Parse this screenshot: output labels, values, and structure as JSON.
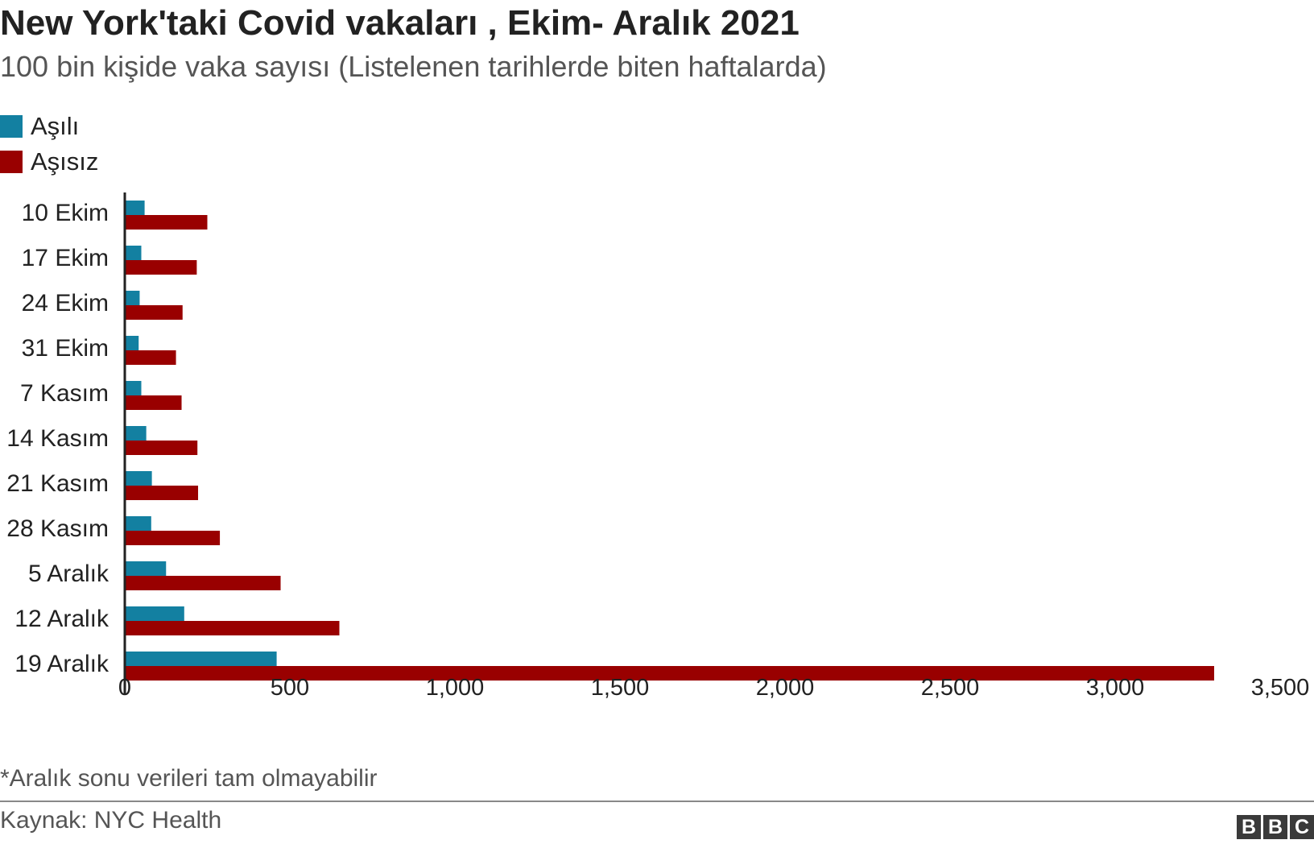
{
  "title": "New York'taki Covid vakaları , Ekim- Aralık 2021",
  "subtitle": "100 bin kişide vaka sayısı (Listelenen tarihlerde biten haftalarda)",
  "note": "*Aralık sonu verileri tam olmayabilir",
  "source": "Kaynak: NYC Health",
  "logo": [
    "B",
    "B",
    "C"
  ],
  "chart_data": {
    "type": "bar",
    "orientation": "horizontal",
    "categories": [
      "10 Ekim",
      "17 Ekim",
      "24 Ekim",
      "31 Ekim",
      "7 Kasım",
      "14 Kasım",
      "21 Kasım",
      "28 Kasım",
      "5 Aralık",
      "12 Aralık",
      "19 Aralık"
    ],
    "series": [
      {
        "name": "Aşılı",
        "color": "#1380a1",
        "values": [
          60,
          50,
          45,
          42,
          50,
          65,
          82,
          80,
          125,
          180,
          460
        ]
      },
      {
        "name": "Aşısız",
        "color": "#990000",
        "values": [
          250,
          218,
          175,
          155,
          172,
          220,
          222,
          288,
          472,
          650,
          3300
        ]
      }
    ],
    "xlim": [
      0,
      3500
    ],
    "xticks": [
      0,
      500,
      1000,
      1500,
      2000,
      2500,
      3000,
      3500
    ],
    "xtick_labels": [
      "0",
      "500",
      "1,000",
      "1,500",
      "2,000",
      "2,500",
      "3,000",
      "3,500"
    ],
    "grid": false,
    "legend_position": "top-left"
  }
}
